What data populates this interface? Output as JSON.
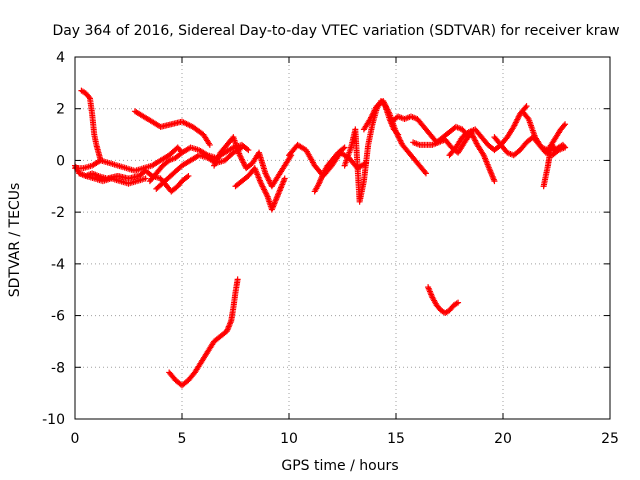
{
  "chart_data": {
    "type": "scatter",
    "title": "Day 364 of 2016, Sidereal Day-to-day VTEC variation (SDTVAR) for receiver kraw",
    "xlabel": "GPS time / hours",
    "ylabel": "SDTVAR / TECUs",
    "xlim": [
      0,
      25
    ],
    "ylim": [
      -10,
      4
    ],
    "xticks": [
      0,
      5,
      10,
      15,
      20,
      25
    ],
    "yticks": [
      -10,
      -8,
      -6,
      -4,
      -2,
      0,
      2,
      4
    ],
    "grid": true,
    "marker": "+",
    "series": [
      {
        "name": "SDTVAR",
        "color": "#ff0000",
        "segments": [
          {
            "x": [
              0.0,
              0.2,
              0.5,
              0.8,
              1.1,
              1.5,
              2.0,
              2.5,
              3.0,
              3.3,
              3.6,
              4.0,
              4.2,
              4.5,
              4.8,
              5.0,
              5.3
            ],
            "y": [
              -0.2,
              -0.5,
              -0.6,
              -0.5,
              -0.6,
              -0.7,
              -0.6,
              -0.7,
              -0.6,
              -0.4,
              -0.6,
              -0.7,
              -0.9,
              -1.2,
              -1.0,
              -0.8,
              -0.6
            ]
          },
          {
            "x": [
              0.3,
              0.5,
              0.7,
              0.8,
              0.9,
              1.0,
              1.1,
              1.2
            ],
            "y": [
              2.7,
              2.6,
              2.4,
              1.8,
              1.0,
              0.6,
              0.3,
              0.0
            ]
          },
          {
            "x": [
              0.0,
              0.4,
              0.8,
              1.2,
              1.6,
              2.0,
              2.4,
              2.8,
              3.2,
              3.6,
              4.0,
              4.4,
              4.8,
              5.0
            ],
            "y": [
              -0.3,
              -0.3,
              -0.2,
              0.0,
              -0.1,
              -0.2,
              -0.3,
              -0.4,
              -0.3,
              -0.2,
              0.0,
              0.2,
              0.5,
              0.3
            ]
          },
          {
            "x": [
              0.2,
              0.5,
              0.9,
              1.3,
              1.7,
              2.1,
              2.5,
              2.9,
              3.3
            ],
            "y": [
              -0.5,
              -0.6,
              -0.7,
              -0.8,
              -0.7,
              -0.8,
              -0.9,
              -0.8,
              -0.7
            ]
          },
          {
            "x": [
              2.8,
              3.2,
              3.6,
              4.0,
              4.5,
              5.0,
              5.5,
              6.0,
              6.3
            ],
            "y": [
              1.9,
              1.7,
              1.5,
              1.3,
              1.4,
              1.5,
              1.3,
              1.0,
              0.6
            ]
          },
          {
            "x": [
              3.5,
              3.8,
              4.1,
              4.4,
              4.7,
              5.0,
              5.4,
              5.8,
              6.2,
              6.6,
              7.0,
              7.4,
              7.8,
              8.1
            ],
            "y": [
              -0.8,
              -0.5,
              -0.2,
              0.0,
              0.1,
              0.3,
              0.5,
              0.4,
              0.2,
              0.1,
              0.3,
              0.5,
              0.6,
              0.4
            ]
          },
          {
            "x": [
              3.8,
              4.2,
              4.6,
              5.0,
              5.4,
              5.8,
              6.2,
              6.6,
              7.0,
              7.4,
              7.8
            ],
            "y": [
              -1.1,
              -0.8,
              -0.5,
              -0.2,
              0.0,
              0.2,
              0.1,
              -0.1,
              0.0,
              0.3,
              0.5
            ]
          },
          {
            "x": [
              6.5,
              6.8,
              7.1,
              7.4,
              7.7,
              8.0,
              8.3,
              8.6,
              8.9,
              9.2,
              9.5,
              9.8,
              10.1
            ],
            "y": [
              -0.2,
              0.3,
              0.6,
              0.9,
              0.2,
              -0.3,
              -0.1,
              0.3,
              -0.5,
              -1.0,
              -0.6,
              -0.2,
              0.2
            ]
          },
          {
            "x": [
              7.5,
              7.8,
              8.1,
              8.4,
              8.7,
              9.0,
              9.2,
              9.4,
              9.6,
              9.8
            ],
            "y": [
              -1.0,
              -0.8,
              -0.6,
              -0.3,
              -0.9,
              -1.4,
              -1.9,
              -1.5,
              -1.1,
              -0.7
            ]
          },
          {
            "x": [
              10.0,
              10.4,
              10.8,
              11.2,
              11.6,
              12.0,
              12.4,
              12.8,
              13.2,
              13.6
            ],
            "y": [
              0.2,
              0.6,
              0.4,
              -0.2,
              -0.6,
              -0.2,
              0.3,
              0.1,
              -0.3,
              -0.1
            ]
          },
          {
            "x": [
              11.2,
              11.4,
              11.6,
              11.8,
              12.0,
              12.3,
              12.6
            ],
            "y": [
              -1.2,
              -0.9,
              -0.5,
              -0.2,
              0.0,
              0.3,
              0.5
            ]
          },
          {
            "x": [
              12.6,
              12.9,
              13.1,
              13.3,
              13.5,
              13.7,
              13.9,
              14.1,
              14.3,
              14.5,
              14.7,
              14.9,
              15.1
            ],
            "y": [
              -0.2,
              0.5,
              1.2,
              -1.6,
              -0.8,
              0.6,
              1.4,
              2.0,
              2.3,
              2.1,
              1.6,
              1.2,
              1.0
            ]
          },
          {
            "x": [
              13.5,
              13.8,
              14.1,
              14.4,
              14.7,
              15.0,
              15.3,
              15.6,
              15.9,
              16.2,
              16.4
            ],
            "y": [
              1.2,
              1.6,
              2.1,
              2.3,
              1.8,
              1.1,
              0.6,
              0.3,
              0.0,
              -0.3,
              -0.5
            ]
          },
          {
            "x": [
              14.8,
              15.1,
              15.4,
              15.7,
              16.0,
              16.3,
              16.6,
              16.9,
              17.2,
              17.5,
              17.8,
              18.1,
              18.4
            ],
            "y": [
              1.5,
              1.7,
              1.6,
              1.7,
              1.6,
              1.3,
              1.0,
              0.7,
              0.9,
              1.1,
              1.3,
              1.2,
              0.9
            ]
          },
          {
            "x": [
              15.8,
              16.1,
              16.4,
              16.7,
              17.0,
              17.3,
              17.6,
              17.9,
              18.2,
              18.5,
              18.8,
              19.1,
              19.4,
              19.6
            ],
            "y": [
              0.7,
              0.6,
              0.6,
              0.6,
              0.7,
              0.8,
              0.5,
              0.3,
              0.7,
              1.1,
              0.6,
              0.2,
              -0.4,
              -0.8
            ]
          },
          {
            "x": [
              17.5,
              17.8,
              18.1,
              18.4,
              18.7,
              19.0,
              19.3,
              19.6,
              19.9,
              20.2,
              20.5,
              20.8,
              21.1
            ],
            "y": [
              0.2,
              0.5,
              0.9,
              1.1,
              1.2,
              0.9,
              0.6,
              0.4,
              0.6,
              0.9,
              1.3,
              1.8,
              2.1
            ]
          },
          {
            "x": [
              19.6,
              19.9,
              20.2,
              20.5,
              20.8,
              21.1,
              21.4,
              21.7,
              22.0,
              22.3,
              22.6,
              22.9
            ],
            "y": [
              0.9,
              0.6,
              0.3,
              0.2,
              0.4,
              0.7,
              0.9,
              0.6,
              0.3,
              0.2,
              0.4,
              0.5
            ]
          },
          {
            "x": [
              20.9,
              21.2,
              21.5,
              21.8,
              22.1,
              22.4,
              22.7,
              22.9
            ],
            "y": [
              1.9,
              1.6,
              0.9,
              0.5,
              0.4,
              0.8,
              1.2,
              1.4
            ]
          },
          {
            "x": [
              21.9,
              22.0,
              22.1,
              22.2,
              22.3,
              22.4,
              22.6,
              22.8,
              22.9
            ],
            "y": [
              -1.0,
              -0.6,
              -0.2,
              0.3,
              0.6,
              0.4,
              0.5,
              0.6,
              0.5
            ]
          },
          {
            "x": [
              4.4,
              4.7,
              5.0,
              5.3,
              5.6,
              5.9,
              6.2,
              6.5,
              6.8,
              7.1,
              7.3,
              7.4,
              7.5,
              7.6
            ],
            "y": [
              -8.2,
              -8.5,
              -8.7,
              -8.5,
              -8.2,
              -7.8,
              -7.4,
              -7.0,
              -6.8,
              -6.6,
              -6.2,
              -5.7,
              -5.1,
              -4.6
            ]
          },
          {
            "x": [
              16.5,
              16.7,
              16.9,
              17.1,
              17.3,
              17.5,
              17.7,
              17.9
            ],
            "y": [
              -4.9,
              -5.3,
              -5.6,
              -5.8,
              -5.9,
              -5.8,
              -5.6,
              -5.5
            ]
          }
        ]
      }
    ]
  }
}
